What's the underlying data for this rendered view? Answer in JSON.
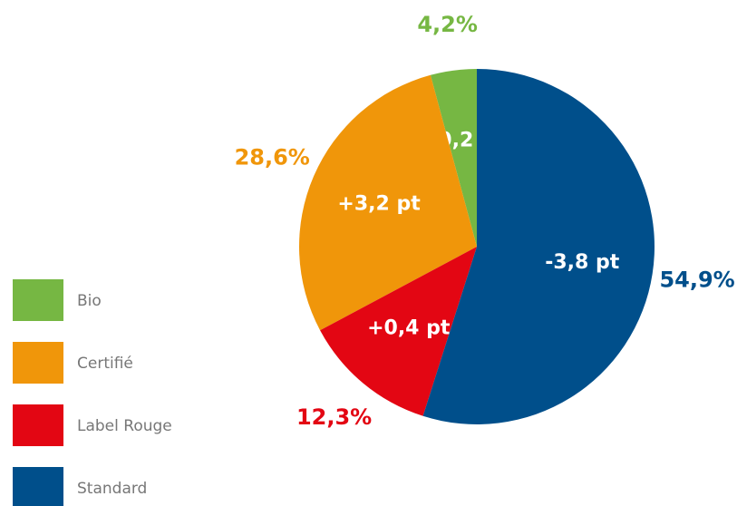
{
  "chart_data": {
    "type": "pie",
    "categories": [
      "Bio",
      "Certifié",
      "Label Rouge",
      "Standard"
    ],
    "values": [
      4.2,
      28.6,
      12.3,
      54.9
    ],
    "value_labels": [
      "4,2%",
      "28,6%",
      "12,3%",
      "54,9%"
    ],
    "change_labels": [
      "+0,2 pt",
      "+3,2 pt",
      "+0,4 pt",
      "-3,8 pt"
    ],
    "colors": [
      "#76b743",
      "#f0960a",
      "#e30613",
      "#004f8b"
    ],
    "legend": "bottom-left"
  }
}
